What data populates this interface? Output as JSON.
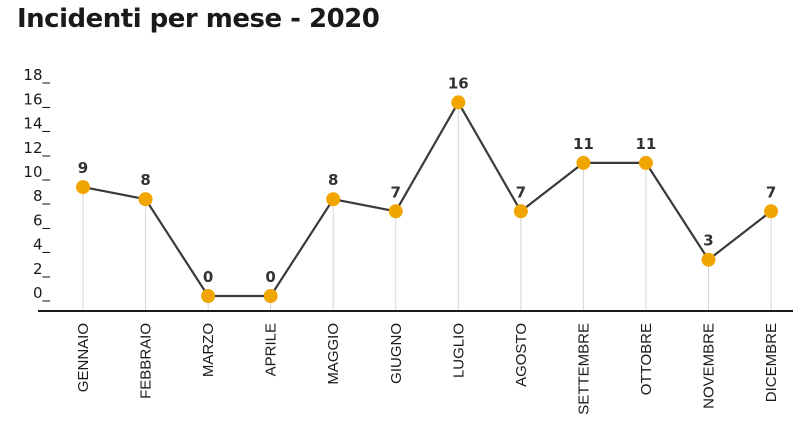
{
  "chart_data": {
    "type": "line",
    "title": "Incidenti per mese - 2020",
    "xlabel": "",
    "ylabel": "",
    "categories": [
      "GENNAIO",
      "FEBBRAIO",
      "MARZO",
      "APRILE",
      "MAGGIO",
      "GIUGNO",
      "LUGLIO",
      "AGOSTO",
      "SETTEMBRE",
      "OTTOBRE",
      "NOVEMBRE",
      "DICEMBRE"
    ],
    "values": [
      9,
      8,
      0,
      0,
      8,
      7,
      16,
      7,
      11,
      11,
      3,
      7
    ],
    "y_ticks": [
      "0_",
      "2_",
      "4_",
      "6_",
      "8_",
      "10_",
      "12_",
      "14_",
      "16_",
      "18_"
    ],
    "ylim": [
      0,
      18
    ],
    "grid": false,
    "colors": {
      "line": "#3a3a3a",
      "marker": "#f0a500",
      "dropline": "#d6d6d6",
      "axis": "#1a1a1a"
    }
  }
}
